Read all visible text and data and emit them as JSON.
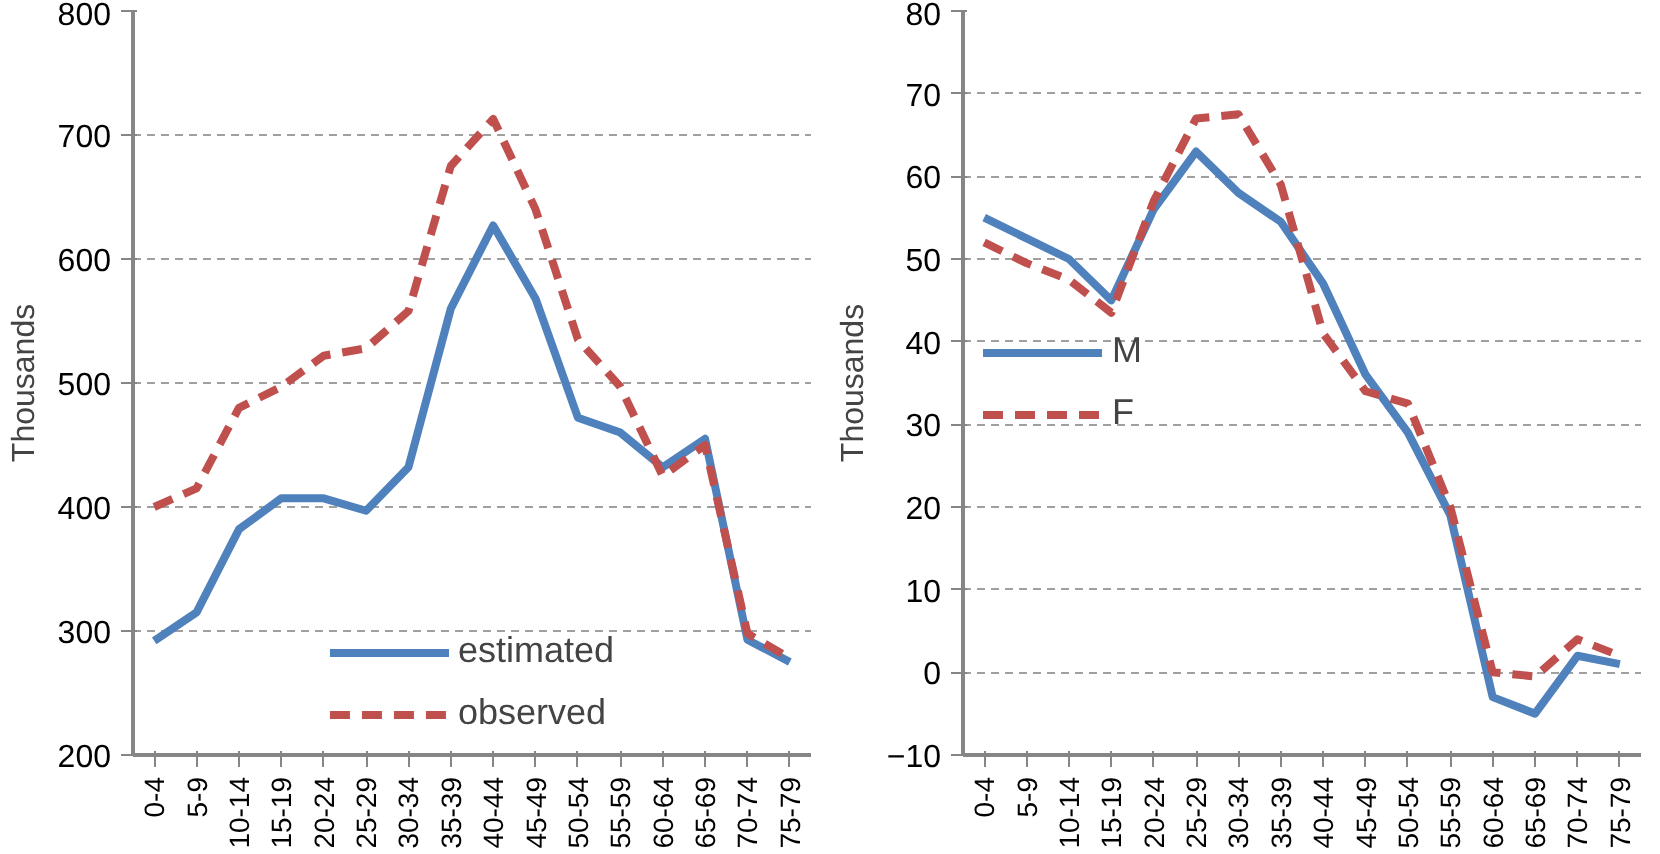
{
  "chart_data": [
    {
      "type": "line",
      "ylabel": "Thousands",
      "categories": [
        "0-4",
        "5-9",
        "10-14",
        "15-19",
        "20-24",
        "25-29",
        "30-34",
        "35-39",
        "40-44",
        "45-49",
        "50-54",
        "55-59",
        "60-64",
        "65-69",
        "70-74",
        "75-79"
      ],
      "ylim": [
        200,
        800
      ],
      "yticks": [
        200,
        300,
        400,
        500,
        600,
        700,
        800
      ],
      "grid": "y",
      "legend": "bottom",
      "series": [
        {
          "name": "estimated",
          "color": "#4f81bd",
          "line_style": "solid",
          "values": [
            292,
            315,
            382,
            407,
            407,
            397,
            432,
            560,
            627,
            568,
            472,
            460,
            432,
            455,
            293,
            275
          ]
        },
        {
          "name": "observed",
          "color": "#c0504d",
          "line_style": "dashed",
          "values": [
            400,
            415,
            480,
            497,
            522,
            528,
            558,
            675,
            713,
            640,
            535,
            497,
            425,
            450,
            298,
            278
          ]
        }
      ]
    },
    {
      "type": "line",
      "ylabel": "Thousands",
      "categories": [
        "0-4",
        "5-9",
        "10-14",
        "15-19",
        "20-24",
        "25-29",
        "30-34",
        "35-39",
        "40-44",
        "45-49",
        "50-54",
        "55-59",
        "60-64",
        "65-69",
        "70-74",
        "75-79"
      ],
      "ylim": [
        -10,
        80
      ],
      "yticks": [
        -10,
        0,
        10,
        20,
        30,
        40,
        50,
        60,
        70,
        80
      ],
      "grid": "y",
      "legend": "left",
      "series": [
        {
          "name": "M",
          "color": "#4f81bd",
          "line_style": "solid",
          "values": [
            55,
            52.5,
            50,
            45,
            56,
            63,
            58,
            54.5,
            47,
            36,
            29,
            19,
            -3,
            -5,
            2,
            1
          ]
        },
        {
          "name": "F",
          "color": "#c0504d",
          "line_style": "dashed",
          "values": [
            52,
            49.5,
            47.5,
            43.5,
            57,
            67,
            67.5,
            59,
            41,
            34,
            32.5,
            20,
            0,
            -0.5,
            4,
            2
          ]
        }
      ]
    }
  ]
}
